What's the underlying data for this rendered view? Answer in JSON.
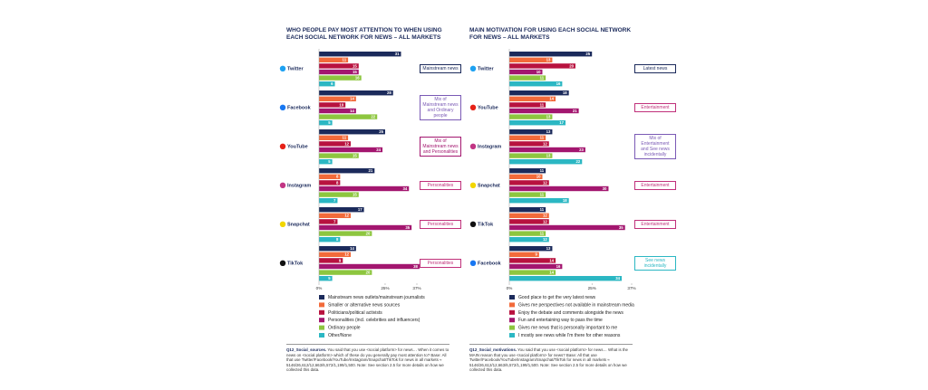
{
  "chart_data": [
    {
      "type": "bar",
      "orientation": "horizontal",
      "title": "WHO PEOPLE PAY MOST ATTENTION TO WHEN USING EACH SOCIAL NETWORK FOR NEWS – ALL MARKETS",
      "categories": [
        "Twitter",
        "Facebook",
        "YouTube",
        "Instagram",
        "Snapchat",
        "TikTok"
      ],
      "icon_colors": [
        "#1da1f2",
        "#1877f2",
        "#e62117",
        "#c13584",
        "#f2d600",
        "#111111"
      ],
      "series": [
        {
          "name": "Mainstream news outlets/mainstream journalists",
          "color": "#1b2a5b",
          "values": [
            31,
            28,
            25,
            21,
            17,
            14
          ]
        },
        {
          "name": "Smaller or alternative news sources",
          "color": "#f26a3a",
          "values": [
            11,
            14,
            11,
            8,
            12,
            12
          ]
        },
        {
          "name": "Politicians/political activists",
          "color": "#b8123f",
          "values": [
            15,
            10,
            12,
            8,
            7,
            9
          ]
        },
        {
          "name": "Personalities (incl. celebrities and influencers)",
          "color": "#a3166f",
          "values": [
            15,
            14,
            24,
            34,
            35,
            38
          ]
        },
        {
          "name": "Ordinary people",
          "color": "#8dc63f",
          "values": [
            16,
            22,
            15,
            15,
            20,
            20
          ]
        },
        {
          "name": "Other/None",
          "color": "#2bb7c3",
          "values": [
            6,
            5,
            5,
            7,
            8,
            5
          ]
        }
      ],
      "annotations": [
        {
          "text": "Mainstream news",
          "color": "#1b2a5b"
        },
        {
          "text": "Mix of Mainstream news and Ordinary people",
          "color": "#7a5ab5"
        },
        {
          "text": "Mix of Mainstream news and Personalities",
          "color": "#a3166f"
        },
        {
          "text": "Personalities",
          "color": "#c0307a"
        },
        {
          "text": "Personalities",
          "color": "#c0307a"
        },
        {
          "text": "Personalities",
          "color": "#c0307a"
        }
      ],
      "xlim": [
        0,
        37
      ],
      "xticks": [
        {
          "value": 0,
          "label": "0%"
        },
        {
          "value": 25,
          "label": "25%"
        },
        {
          "value": 37,
          "label": "37%"
        }
      ],
      "footnote_label": "Q12_Social_sources.",
      "footnote": "You said that you use <social platform> for news… When it comes to news on <social platform> which of these do you generally pay most attention to? Base: All that use Twitter/Facebook/YouTube/Instagram/Snapchat/TikTok for news in all markets ≈ 5146/26,612/12,663/6,572/1,199/1,500. Note: See section 2.5 for more details on how we collected this data."
    },
    {
      "type": "bar",
      "orientation": "horizontal",
      "title": "MAIN MOTIVATION FOR USING EACH SOCIAL NETWORK FOR NEWS – ALL MARKETS",
      "categories": [
        "Twitter",
        "YouTube",
        "Instagram",
        "Snapchat",
        "TikTok",
        "Facebook"
      ],
      "icon_colors": [
        "#1da1f2",
        "#e62117",
        "#c13584",
        "#f2d600",
        "#111111",
        "#1877f2"
      ],
      "series": [
        {
          "name": "Good place to get the very latest news",
          "color": "#1b2a5b",
          "values": [
            25,
            18,
            13,
            11,
            11,
            13
          ]
        },
        {
          "name": "Gives me perspectives not available in mainstream media",
          "color": "#f26a3a",
          "values": [
            13,
            14,
            11,
            10,
            12,
            9
          ]
        },
        {
          "name": "Enjoy the debate and comments alongside the news",
          "color": "#b8123f",
          "values": [
            20,
            11,
            12,
            12,
            12,
            14
          ]
        },
        {
          "name": "Fun and entertaining way to pass the time",
          "color": "#a3166f",
          "values": [
            10,
            21,
            23,
            30,
            35,
            16
          ]
        },
        {
          "name": "Gives me news that is personally important to me",
          "color": "#8dc63f",
          "values": [
            11,
            13,
            13,
            11,
            11,
            14
          ]
        },
        {
          "name": "I mostly see news while I'm there for other reasons",
          "color": "#2bb7c3",
          "values": [
            16,
            17,
            22,
            18,
            12,
            34
          ]
        }
      ],
      "annotations": [
        {
          "text": "Latest news",
          "color": "#1b2a5b"
        },
        {
          "text": "Entertainment",
          "color": "#c0307a"
        },
        {
          "text": "Mix of Entertainment and See news incidentally",
          "color": "#7a5ab5"
        },
        {
          "text": "Entertainment",
          "color": "#c0307a"
        },
        {
          "text": "Entertainment",
          "color": "#c0307a"
        },
        {
          "text": "See news incidentally",
          "color": "#2bb7c3"
        }
      ],
      "xlim": [
        0,
        37
      ],
      "xticks": [
        {
          "value": 0,
          "label": "0%"
        },
        {
          "value": 25,
          "label": "25%"
        },
        {
          "value": 37,
          "label": "37%"
        }
      ],
      "footnote_label": "Q12_Social_motivations.",
      "footnote": "You said that you use <social platform> for news… What is the MAIN reason that you use <social platform> for news? Base: All that use Twitter/Facebook/YouTube/Instagram/Snapchat/TikTok for news in all markets ≈ 5146/26,612/12,663/6,572/1,199/1,500. Note: See section 2.5 for more details on how we collected this data."
    }
  ]
}
